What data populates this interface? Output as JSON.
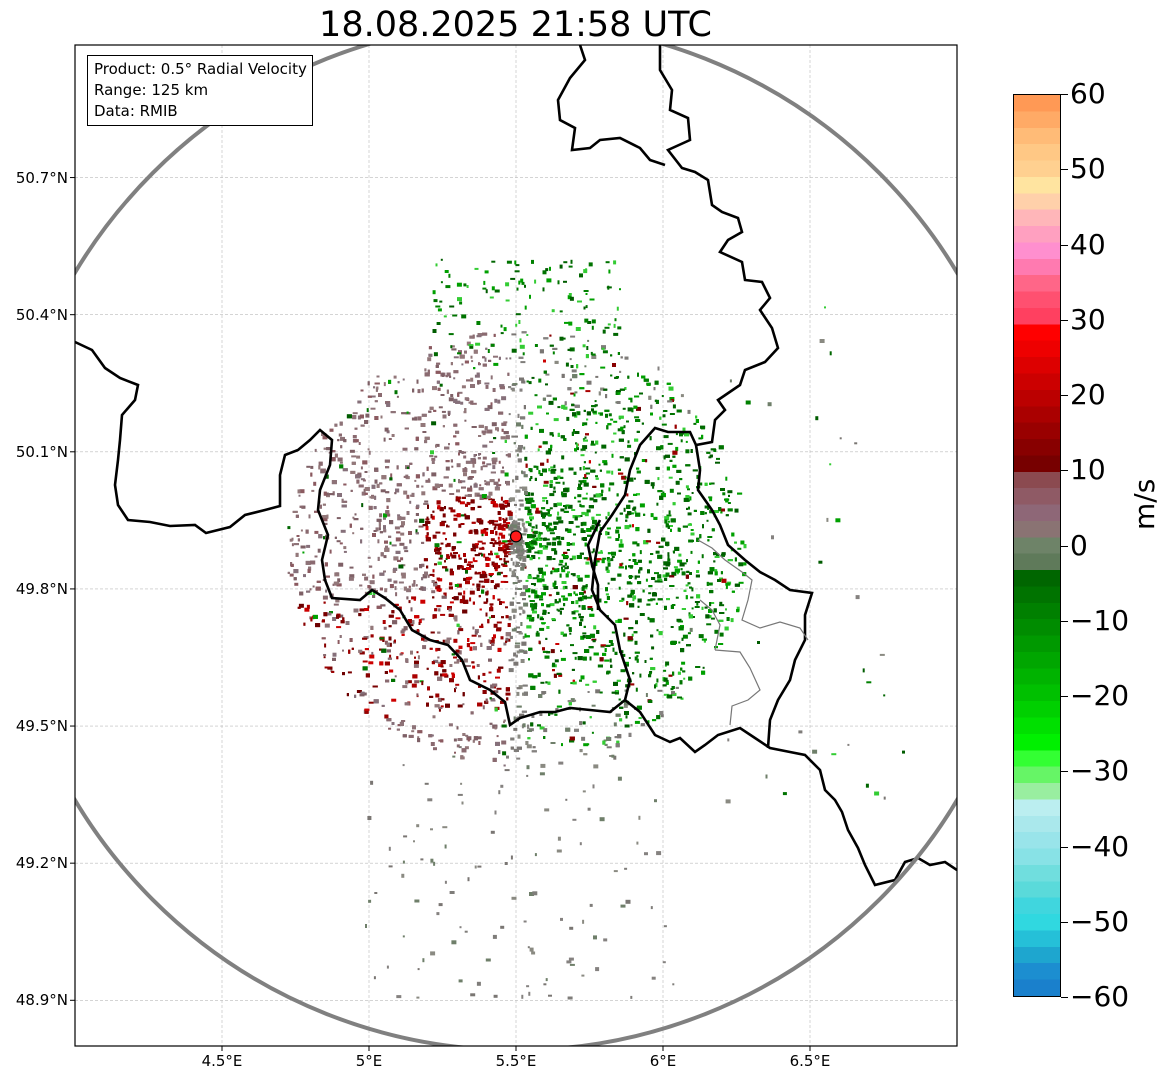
{
  "title": "18.08.2025 21:58 UTC",
  "info_box": {
    "product": "Product: 0.5° Radial Velocity",
    "range": "Range: 125 km",
    "source": "Data: RMIB"
  },
  "map": {
    "lat_labels": [
      "50.7°N",
      "50.4°N",
      "50.1°N",
      "49.8°N",
      "49.5°N",
      "49.2°N",
      "48.9°N"
    ],
    "lon_labels": [
      "4.5°E",
      "5°E",
      "5.5°E",
      "6°E",
      "6.5°E"
    ],
    "radar_site": {
      "lon": 5.5,
      "lat": 49.915
    },
    "range_ring_km": 125,
    "extent": {
      "lon_min": 4.0,
      "lon_max": 7.0,
      "lat_min": 48.8,
      "lat_max": 50.99
    },
    "gridlines": true,
    "grid_color": "#bbbbbb",
    "ring_color": "#808080",
    "border_color": "#000000",
    "site_color": "#ff1a1a"
  },
  "colorbar": {
    "unit": "m/s",
    "ticks": [
      "60",
      "50",
      "40",
      "30",
      "20",
      "10",
      "0",
      "−10",
      "−20",
      "−30",
      "−40",
      "−50",
      "−60"
    ],
    "min": -60,
    "max": 60,
    "colors_top_to_bottom": [
      "#ff9955",
      "#ffaa66",
      "#ffbb77",
      "#ffc885",
      "#ffd090",
      "#ffe4a0",
      "#ffd0aa",
      "#ffb6b9",
      "#ffa0c0",
      "#ff8fcf",
      "#ff7ab0",
      "#ff6688",
      "#ff5070",
      "#ff4060",
      "#ff0000",
      "#ee0000",
      "#dd0000",
      "#cc0000",
      "#bb0000",
      "#aa0000",
      "#990000",
      "#880000",
      "#770000",
      "#8b4a50",
      "#8f5a65",
      "#8e6777",
      "#8a7373",
      "#6e8368",
      "#5f7a5a",
      "#006600",
      "#007300",
      "#008000",
      "#008c00",
      "#009900",
      "#00a600",
      "#00b300",
      "#00c000",
      "#00d000",
      "#00e000",
      "#00f000",
      "#33ff33",
      "#66f566",
      "#99eea0",
      "#bbeef0",
      "#aae8ec",
      "#99e4ea",
      "#88e2e6",
      "#70dede",
      "#5adada",
      "#40d6de",
      "#30d8e0",
      "#25c0d8",
      "#1ea6cf",
      "#1c8ed0",
      "#1a80cc"
    ]
  }
}
